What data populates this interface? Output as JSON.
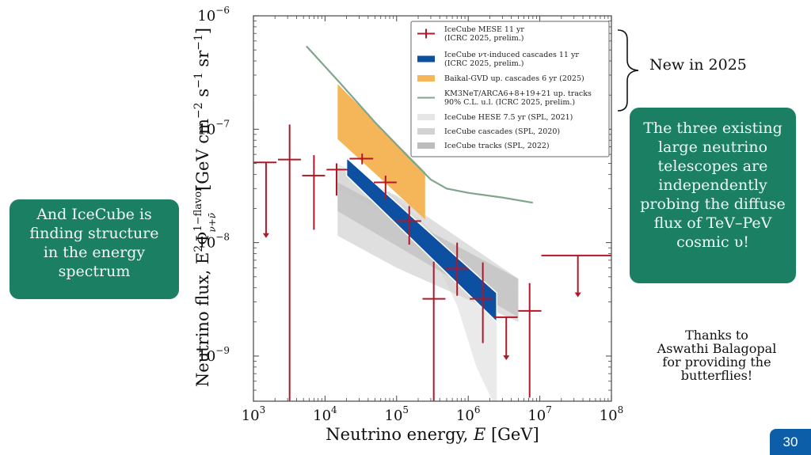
{
  "slide": {
    "page_number": "30",
    "left_box": [
      "And IceCube is",
      "finding structure",
      "in the energy",
      "spectrum"
    ],
    "right_box": [
      "The three existing",
      "large neutrino",
      "telescopes are",
      "independently",
      "probing the diffuse",
      "flux of TeV–PeV",
      "cosmic υ!"
    ],
    "new_label": "New in 2025",
    "thanks": [
      "Thanks to",
      "Aswathi Balagopal",
      "for providing the",
      "butterflies!"
    ]
  },
  "colors": {
    "mese": "#b0182a",
    "tau_cascades": "#0d4fa0",
    "baikal": "#f5b65a",
    "km3net": "#7fa58c",
    "hese": "#e6e6e6",
    "cascades": "#d2d2d2",
    "tracks": "#bdbdbd",
    "annotation_box": "#1a7f63",
    "page_badge": "#0d5ea8"
  },
  "chart_data": {
    "type": "line",
    "title": "",
    "xlabel": "Neutrino energy, E [GeV]",
    "ylabel": "Neutrino flux, E²Φ (1-flavor, ν+ν̄) [GeV cm⁻² s⁻¹ sr⁻¹]",
    "ylabel_parts": {
      "main": "Neutrino flux, E",
      "sup2": "2",
      "phi": "Φ",
      "sup": "1−flavor",
      "sub": "ν+ν̄",
      "units": "[GeV cm",
      "u1": "−2",
      "u2": " s",
      "u3": "−1",
      "u4": " sr",
      "u5": "−1",
      "u6": "]"
    },
    "xlabel_parts": {
      "main": "Neutrino energy, ",
      "var": "E",
      "units": " [GeV]"
    },
    "xscale": "log",
    "yscale": "log",
    "xlim": [
      1000,
      100000000
    ],
    "ylim": [
      4e-10,
      1e-06
    ],
    "x_ticks": [
      {
        "base": "10",
        "exp": "3"
      },
      {
        "base": "10",
        "exp": "4"
      },
      {
        "base": "10",
        "exp": "5"
      },
      {
        "base": "10",
        "exp": "6"
      },
      {
        "base": "10",
        "exp": "7"
      },
      {
        "base": "10",
        "exp": "8"
      }
    ],
    "y_ticks": [
      {
        "base": "10",
        "exp": "−6",
        "value": 1e-06
      },
      {
        "base": "10",
        "exp": "−7",
        "value": 1e-07
      },
      {
        "base": "10",
        "exp": "−8",
        "value": 1e-08
      },
      {
        "base": "10",
        "exp": "−9",
        "value": 1e-09
      }
    ],
    "legend_position": "top-right",
    "legend": [
      {
        "key": "mese",
        "lines": [
          "IceCube MESE 11 yr",
          "(ICRC 2025, prelim.)"
        ],
        "style": "errorbar"
      },
      {
        "key": "tau",
        "lines": [
          "IceCube ντ-induced cascades 11 yr",
          "(ICRC 2025, prelim.)"
        ],
        "style": "band"
      },
      {
        "key": "baikal",
        "lines": [
          "Baikal-GVD up. cascades 6 yr (2025)"
        ],
        "style": "band"
      },
      {
        "key": "km3net",
        "lines": [
          "KM3NeT/ARCA6+8+19+21 up. tracks",
          "90% C.L. u.l. (ICRC 2025, prelim.)"
        ],
        "style": "line"
      },
      {
        "key": "hese",
        "lines": [
          "IceCube HESE 7.5 yr (SPL, 2021)"
        ],
        "style": "band"
      },
      {
        "key": "cascades",
        "lines": [
          "IceCube cascades (SPL, 2020)"
        ],
        "style": "band"
      },
      {
        "key": "tracks",
        "lines": [
          "IceCube tracks (SPL, 2022)"
        ],
        "style": "band"
      }
    ],
    "series": [
      {
        "name": "IceCube MESE 11 yr (ICRC 2025, prelim.)",
        "kind": "errorbar",
        "points": [
          {
            "e": 1500,
            "e_lo": 1000,
            "e_hi": 2100,
            "flux": 5.1e-08,
            "upper_limit": true,
            "arrow_to": 1.1e-08
          },
          {
            "e": 3200,
            "e_lo": 2200,
            "e_hi": 4600,
            "flux": 5.4e-08,
            "flux_lo": 4e-10,
            "flux_hi": 1.1e-07
          },
          {
            "e": 7000,
            "e_lo": 4800,
            "e_hi": 10000,
            "flux": 3.9e-08,
            "flux_lo": 1.3e-08,
            "flux_hi": 5.9e-08
          },
          {
            "e": 14500,
            "e_lo": 10500,
            "e_hi": 20500,
            "flux": 4.4e-08,
            "flux_lo": 2.6e-08,
            "flux_hi": 5e-08
          },
          {
            "e": 33000,
            "e_lo": 22000,
            "e_hi": 47000,
            "flux": 5.5e-08,
            "flux_lo": 4.9e-08,
            "flux_hi": 6.1e-08
          },
          {
            "e": 70000,
            "e_lo": 48000,
            "e_hi": 100000,
            "flux": 3.4e-08,
            "flux_lo": 2.4e-08,
            "flux_hi": 3.9e-08
          },
          {
            "e": 150000,
            "e_lo": 100000,
            "e_hi": 220000,
            "flux": 1.55e-08,
            "flux_lo": 9.6e-09,
            "flux_hi": 2.1e-08
          },
          {
            "e": 330000,
            "e_lo": 230000,
            "e_hi": 480000,
            "flux": 3.2e-09,
            "flux_lo": 4e-10,
            "flux_hi": 6.8e-09
          },
          {
            "e": 700000,
            "e_lo": 480000,
            "e_hi": 1000000,
            "flux": 5.9e-09,
            "flux_lo": 3.4e-09,
            "flux_hi": 1e-08
          },
          {
            "e": 1600000,
            "e_lo": 1050000,
            "e_hi": 2200000,
            "flux": 3.2e-09,
            "flux_lo": 1.3e-09,
            "flux_hi": 6.7e-09
          },
          {
            "e": 3400000,
            "e_lo": 2300000,
            "e_hi": 4900000,
            "flux": 2.2e-09,
            "upper_limit": true,
            "arrow_to": 9.2e-10
          },
          {
            "e": 7200000,
            "e_lo": 5000000,
            "e_hi": 10500000,
            "flux": 2.5e-09,
            "flux_lo": 4.3e-10,
            "flux_hi": 4.4e-09
          },
          {
            "e": 34000000,
            "e_lo": 10500000,
            "e_hi": 100000000,
            "flux": 7.7e-09,
            "upper_limit": true,
            "arrow_to": 3.3e-09
          }
        ]
      },
      {
        "name": "IceCube ντ-induced cascades 11 yr (ICRC 2025, prelim.)",
        "kind": "band",
        "color_key": "tau_cascades",
        "upper": [
          [
            20000,
            5.6e-08
          ],
          [
            2500000,
            3.6e-09
          ]
        ],
        "lower": [
          [
            20000,
            3.9e-08
          ],
          [
            2500000,
            2e-09
          ]
        ]
      },
      {
        "name": "Baikal-GVD up. cascades 6 yr (2025)",
        "kind": "band",
        "color_key": "baikal",
        "upper": [
          [
            15000,
            2.5e-07
          ],
          [
            250000,
            4.2e-08
          ]
        ],
        "lower": [
          [
            15000,
            8.2e-08
          ],
          [
            250000,
            1.6e-08
          ]
        ]
      },
      {
        "name": "KM3NeT/ARCA6+8+19+21 up. tracks 90% C.L. u.l. (ICRC 2025, prelim.)",
        "kind": "line",
        "color_key": "km3net",
        "points": [
          [
            5500,
            5.4e-07
          ],
          [
            15000,
            2.7e-07
          ],
          [
            50000,
            1.15e-07
          ],
          [
            150000,
            5.6e-08
          ],
          [
            300000,
            3.6e-08
          ],
          [
            500000,
            3e-08
          ],
          [
            1000000,
            2.75e-08
          ],
          [
            3000000,
            2.5e-08
          ],
          [
            8000000,
            2.25e-08
          ]
        ]
      },
      {
        "name": "IceCube HESE 7.5 yr (SPL, 2021)",
        "kind": "band",
        "color_key": "hese",
        "upper": [
          [
            15000,
            5e-08
          ],
          [
            100000,
            2.5e-08
          ],
          [
            300000,
            1.3e-08
          ],
          [
            2500000,
            3.2e-09
          ]
        ],
        "lower": [
          [
            15000,
            3e-08
          ],
          [
            100000,
            1.55e-08
          ],
          [
            300000,
            8.5e-09
          ],
          [
            700000,
            2.8e-09
          ],
          [
            1300000,
            8e-10
          ],
          [
            2200000,
            4e-10
          ],
          [
            2500000,
            4e-10
          ]
        ]
      },
      {
        "name": "IceCube cascades (SPL, 2020)",
        "kind": "band",
        "color_key": "cascades",
        "upper": [
          [
            15000,
            4.6e-08
          ],
          [
            100000,
            2.6e-08
          ],
          [
            5000000,
            4.8e-09
          ]
        ],
        "lower": [
          [
            15000,
            1.15e-08
          ],
          [
            100000,
            6e-09
          ],
          [
            5000000,
            2e-09
          ]
        ]
      },
      {
        "name": "IceCube tracks (SPL, 2022)",
        "kind": "band",
        "color_key": "tracks",
        "upper": [
          [
            15000,
            3.4e-08
          ],
          [
            5000000,
            4.8e-09
          ]
        ],
        "lower": [
          [
            15000,
            1.9e-08
          ],
          [
            5000000,
            2.2e-09
          ]
        ]
      }
    ]
  }
}
